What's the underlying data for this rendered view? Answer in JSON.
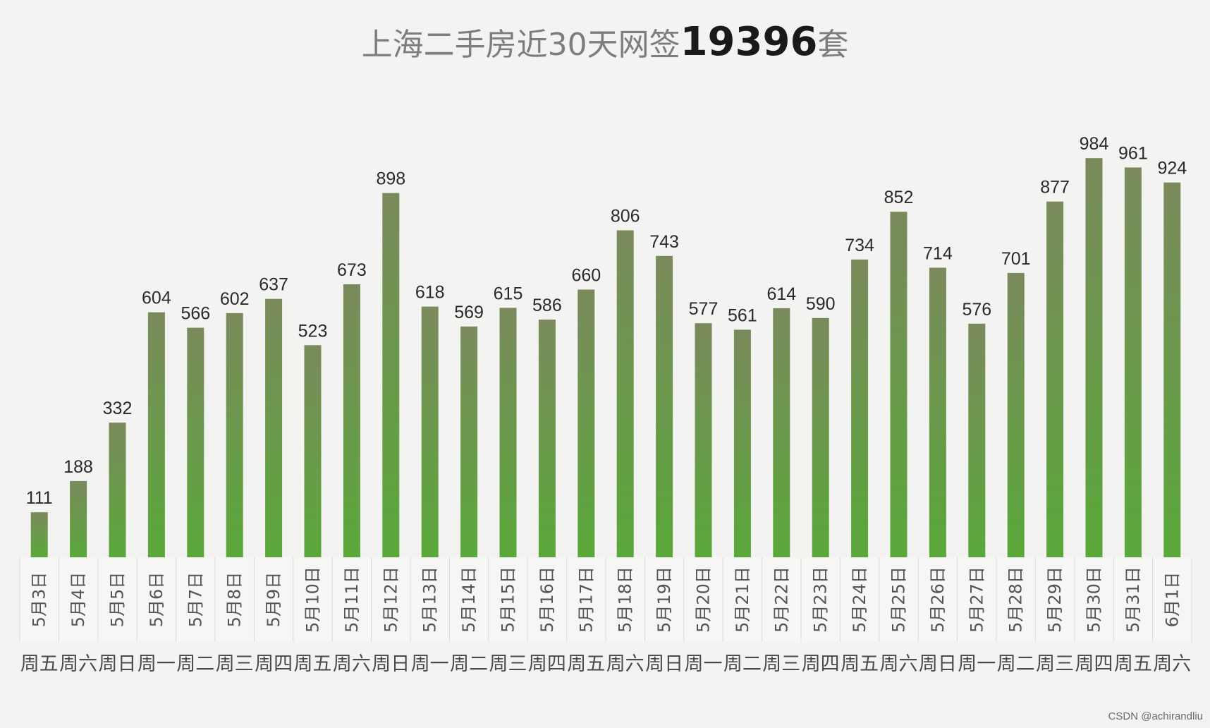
{
  "chart_data": {
    "type": "bar",
    "title_prefix": "上海二手房近30天网签",
    "title_number": "19396",
    "title_suffix": "套",
    "categories": [
      "5月3日",
      "5月4日",
      "5月5日",
      "5月6日",
      "5月7日",
      "5月8日",
      "5月9日",
      "5月10日",
      "5月11日",
      "5月12日",
      "5月13日",
      "5月14日",
      "5月15日",
      "5月16日",
      "5月17日",
      "5月18日",
      "5月19日",
      "5月20日",
      "5月21日",
      "5月22日",
      "5月23日",
      "5月24日",
      "5月25日",
      "5月26日",
      "5月27日",
      "5月28日",
      "5月29日",
      "5月30日",
      "5月31日",
      "6月1日"
    ],
    "weekdays": [
      "周五",
      "周六",
      "周日",
      "周一",
      "周二",
      "周三",
      "周四",
      "周五",
      "周六",
      "周日",
      "周一",
      "周二",
      "周三",
      "周四",
      "周五",
      "周六",
      "周日",
      "周一",
      "周二",
      "周三",
      "周四",
      "周五",
      "周六",
      "周日",
      "周一",
      "周二",
      "周三",
      "周四",
      "周五",
      "周六"
    ],
    "values": [
      111,
      188,
      332,
      604,
      566,
      602,
      637,
      523,
      673,
      898,
      618,
      569,
      615,
      586,
      660,
      806,
      743,
      577,
      561,
      614,
      590,
      734,
      852,
      714,
      576,
      701,
      877,
      984,
      961,
      924
    ],
    "ylim": [
      0,
      1000
    ],
    "grid": false,
    "bar_color_top": "#7a8a5c",
    "bar_color_bottom": "#5aa83a"
  },
  "watermark": "CSDN @achirandliu"
}
